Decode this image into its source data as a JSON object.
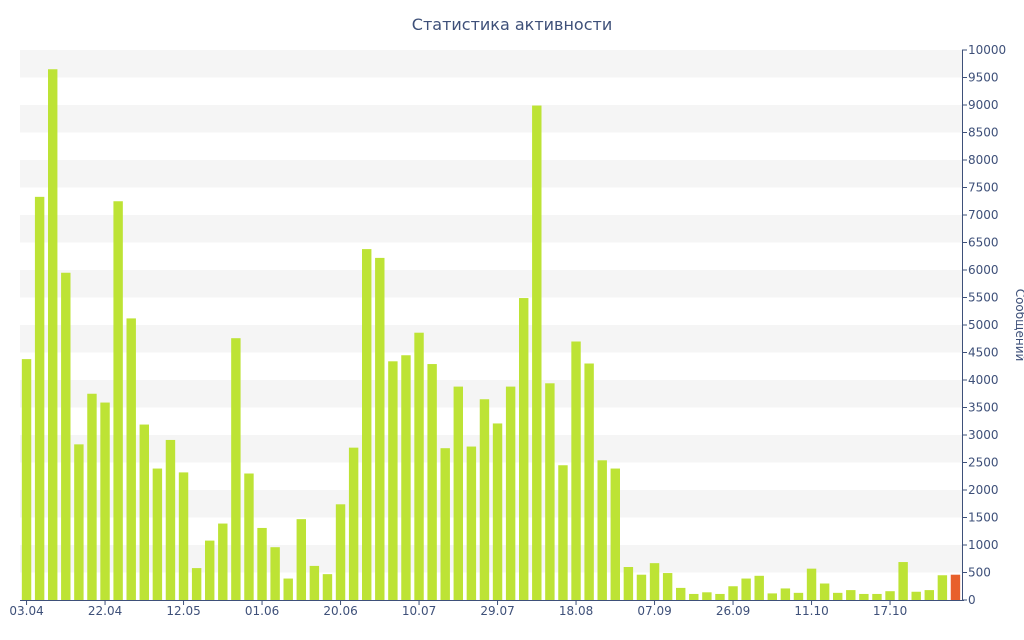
{
  "chart_data": {
    "type": "bar",
    "title": "Статистика активности",
    "ylabel": "Сообщений",
    "ylim": [
      0,
      10000
    ],
    "y_ticks": [
      0,
      500,
      1000,
      1500,
      2000,
      2500,
      3000,
      3500,
      4000,
      4500,
      5000,
      5500,
      6000,
      6500,
      7000,
      7500,
      8000,
      8500,
      9000,
      9500,
      10000
    ],
    "x_tick_labels": [
      {
        "index": 0,
        "label": "03.04"
      },
      {
        "index": 6,
        "label": "22.04"
      },
      {
        "index": 12,
        "label": "12.05"
      },
      {
        "index": 18,
        "label": "01.06"
      },
      {
        "index": 24,
        "label": "20.06"
      },
      {
        "index": 30,
        "label": "10.07"
      },
      {
        "index": 36,
        "label": "29.07"
      },
      {
        "index": 42,
        "label": "18.08"
      },
      {
        "index": 48,
        "label": "07.09"
      },
      {
        "index": 54,
        "label": "26.09"
      },
      {
        "index": 60,
        "label": "11.10"
      },
      {
        "index": 66,
        "label": "17.10"
      }
    ],
    "values": [
      4380,
      7330,
      9650,
      5950,
      2830,
      3750,
      3590,
      7250,
      5120,
      3190,
      2390,
      2910,
      2320,
      580,
      1080,
      1390,
      4760,
      2300,
      1310,
      960,
      390,
      1470,
      620,
      470,
      1740,
      2770,
      6380,
      6220,
      4340,
      4450,
      4860,
      4290,
      2760,
      3880,
      2790,
      3650,
      3210,
      3880,
      5490,
      8990,
      3940,
      2450,
      4700,
      4300,
      2540,
      2390,
      600,
      460,
      670,
      490,
      220,
      110,
      140,
      110,
      250,
      390,
      440,
      120,
      210,
      130,
      570,
      300,
      130,
      180,
      110,
      110,
      160,
      690,
      150,
      180,
      450,
      460
    ],
    "colors": {
      "bar": "#bde335",
      "last_bar": "#e8602c",
      "band": "#f5f5f5",
      "axis": "#3e5079",
      "text": "#3e5079"
    },
    "grid": "alternating-bands",
    "y_axis_position": "right",
    "highlight_last": true
  }
}
